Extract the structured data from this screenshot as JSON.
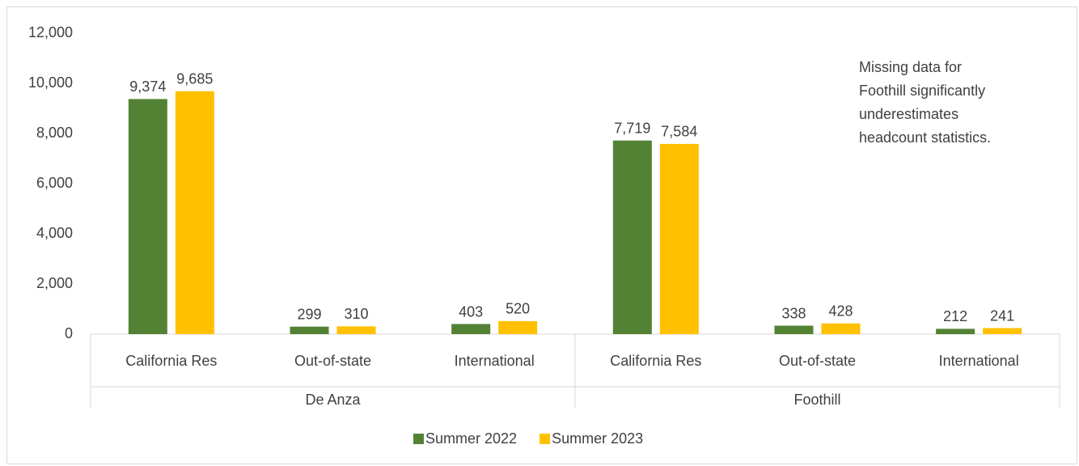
{
  "chart_data": {
    "type": "bar",
    "groups": [
      {
        "name": "De Anza",
        "categories": [
          "California Res",
          "Out-of-state",
          "International"
        ]
      },
      {
        "name": "Foothill",
        "categories": [
          "California Res",
          "Out-of-state",
          "International"
        ]
      }
    ],
    "series": [
      {
        "name": "Summer 2022",
        "color": "#548235",
        "values": [
          9374,
          299,
          403,
          7719,
          338,
          212
        ],
        "value_labels": [
          "9,374",
          "299",
          "403",
          "7,719",
          "338",
          "212"
        ]
      },
      {
        "name": "Summer 2023",
        "color": "#ffc000",
        "values": [
          9685,
          310,
          520,
          7584,
          428,
          241
        ],
        "value_labels": [
          "9,685",
          "310",
          "520",
          "7,584",
          "428",
          "241"
        ]
      }
    ],
    "ylim": [
      0,
      12000
    ],
    "yticks": [
      0,
      {
        "value": 2000,
        "label": "2,000"
      },
      {
        "value": 4000,
        "label": "4,000"
      },
      {
        "value": 6000,
        "label": "6,000"
      },
      {
        "value": 8000,
        "label": "8,000"
      },
      {
        "value": 10000,
        "label": "10,000"
      },
      {
        "value": 12000,
        "label": "12,000"
      }
    ],
    "annotation": [
      "Missing data for",
      "Foothill significantly",
      "underestimates",
      "headcount statistics."
    ],
    "legend": "bottom"
  }
}
